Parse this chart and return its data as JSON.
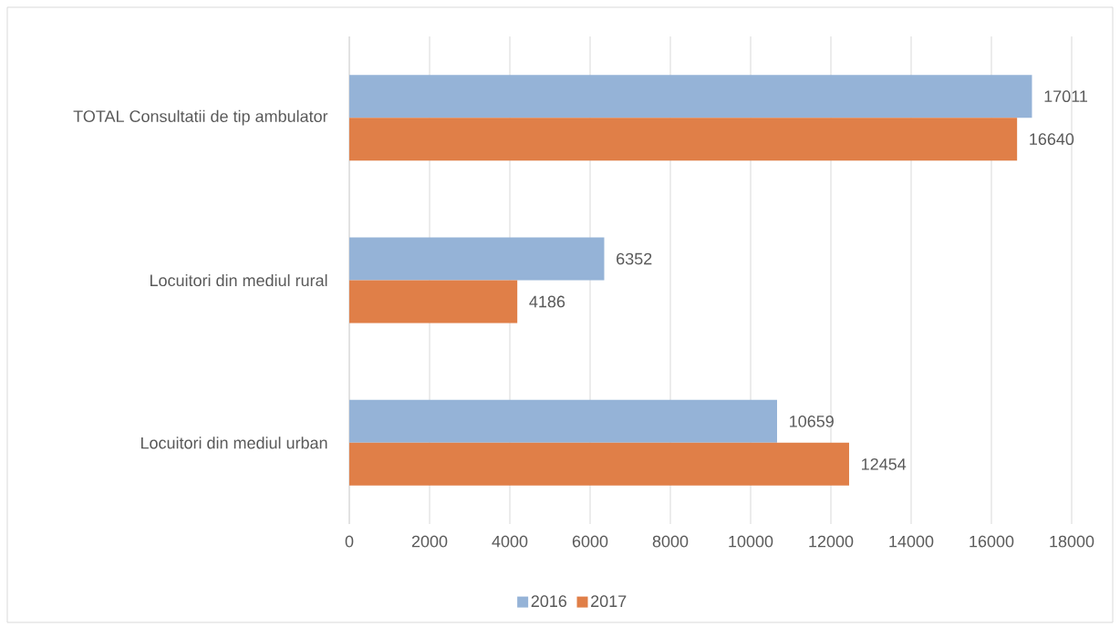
{
  "chart_data": {
    "type": "bar",
    "orientation": "horizontal",
    "categories": [
      "TOTAL Consultatii de tip ambulator",
      "Locuitori din mediul rural",
      "Locuitori din mediul urban"
    ],
    "series": [
      {
        "name": "2016",
        "color": "#95b3d7",
        "values": [
          17011,
          6352,
          10659
        ]
      },
      {
        "name": "2017",
        "color": "#e07f48",
        "values": [
          16640,
          4186,
          12454
        ]
      }
    ],
    "xlim": [
      0,
      18000
    ],
    "xticks": [
      0,
      2000,
      4000,
      6000,
      8000,
      10000,
      12000,
      14000,
      16000,
      18000
    ],
    "grid": "x",
    "legend": "bottom",
    "data_labels": true
  }
}
